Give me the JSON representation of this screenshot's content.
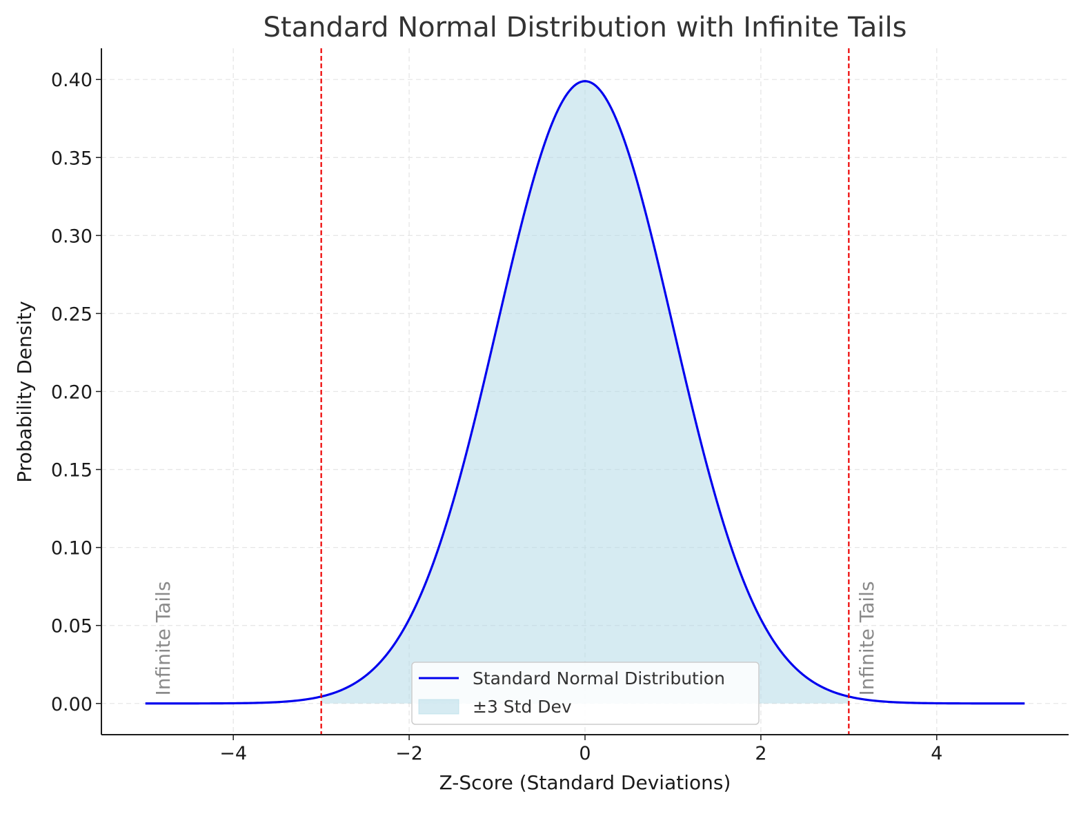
{
  "chart_data": {
    "type": "line",
    "title": "Standard Normal Distribution with Infinite Tails",
    "xlabel": "Z-Score (Standard Deviations)",
    "ylabel": "Probability Density",
    "xlim": [
      -5.5,
      5.5
    ],
    "ylim": [
      -0.02,
      0.42
    ],
    "xticks": [
      -4,
      -2,
      0,
      2,
      4
    ],
    "xtick_labels": [
      "−4",
      "−2",
      "0",
      "2",
      "4"
    ],
    "yticks": [
      0.0,
      0.05,
      0.1,
      0.15,
      0.2,
      0.25,
      0.3,
      0.35,
      0.4
    ],
    "ytick_labels": [
      "0.00",
      "0.05",
      "0.10",
      "0.15",
      "0.20",
      "0.25",
      "0.30",
      "0.35",
      "0.40"
    ],
    "grid": true,
    "legend_position": "bottom-center",
    "series": [
      {
        "name": "Standard Normal Distribution",
        "kind": "line",
        "color": "#0000ee",
        "x": [
          -5.0,
          -4.5,
          -4.0,
          -3.5,
          -3.0,
          -2.75,
          -2.5,
          -2.25,
          -2.0,
          -1.75,
          -1.5,
          -1.25,
          -1.0,
          -0.75,
          -0.5,
          -0.25,
          0.0,
          0.25,
          0.5,
          0.75,
          1.0,
          1.25,
          1.5,
          1.75,
          2.0,
          2.25,
          2.5,
          2.75,
          3.0,
          3.5,
          4.0,
          4.5,
          5.0
        ],
        "y": [
          0.0,
          0.0,
          0.0001,
          0.0009,
          0.0044,
          0.0091,
          0.0175,
          0.0317,
          0.054,
          0.0863,
          0.1295,
          0.1826,
          0.242,
          0.3011,
          0.3521,
          0.3867,
          0.3989,
          0.3867,
          0.3521,
          0.3011,
          0.242,
          0.1826,
          0.1295,
          0.0863,
          0.054,
          0.0317,
          0.0175,
          0.0091,
          0.0044,
          0.0009,
          0.0001,
          0.0,
          0.0
        ]
      },
      {
        "name": "±3 Std Dev",
        "kind": "fill",
        "color": "#add8e6",
        "x_range": [
          -3,
          3
        ]
      }
    ],
    "vlines": [
      {
        "x": -3,
        "color": "#ee0000",
        "style": "dashed"
      },
      {
        "x": 3,
        "color": "#ee0000",
        "style": "dashed"
      }
    ],
    "annotations": [
      {
        "text": "Infinite Tails",
        "x": -4.8,
        "y": 0.005,
        "rotation": 90,
        "color": "#8a8a8a"
      },
      {
        "text": "Infinite Tails",
        "x": 3.2,
        "y": 0.005,
        "rotation": 90,
        "color": "#8a8a8a"
      }
    ]
  }
}
